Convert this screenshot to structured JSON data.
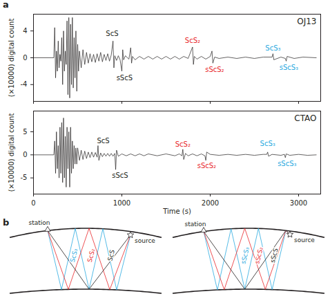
{
  "panel_labels": [
    "a",
    "b"
  ],
  "chart_data": [
    {
      "type": "line",
      "title": "OJ13",
      "y_label": "(×10000) digital count",
      "color": "#231f20",
      "xlim": [
        0,
        3250
      ],
      "xticks": [
        0,
        1000,
        2000,
        3000
      ],
      "ylim": [
        -6.5,
        6.5
      ],
      "yticks": [
        -4,
        0,
        4
      ],
      "tick_labels": "y",
      "x": [
        0,
        200,
        230,
        240,
        250,
        260,
        270,
        280,
        290,
        300,
        310,
        320,
        330,
        340,
        350,
        360,
        370,
        380,
        390,
        400,
        410,
        420,
        430,
        440,
        450,
        460,
        470,
        480,
        490,
        500,
        510,
        520,
        540,
        560,
        580,
        600,
        620,
        640,
        660,
        680,
        700,
        720,
        740,
        760,
        780,
        800,
        820,
        840,
        860,
        880,
        900,
        910,
        920,
        940,
        960,
        980,
        1000,
        1010,
        1020,
        1040,
        1080,
        1100,
        1110,
        1120,
        1150,
        1200,
        1250,
        1300,
        1350,
        1400,
        1450,
        1500,
        1550,
        1600,
        1650,
        1700,
        1750,
        1800,
        1810,
        1820,
        1850,
        1900,
        1950,
        2000,
        2020,
        2030,
        2050,
        2100,
        2200,
        2300,
        2400,
        2500,
        2600,
        2700,
        2710,
        2720,
        2800,
        2850,
        2860,
        2870,
        2950,
        3050,
        3200
      ],
      "values": [
        0,
        0,
        0,
        4.5,
        -3,
        1,
        -2,
        2.5,
        -1.5,
        0.5,
        -0.5,
        3,
        -4,
        4,
        -2,
        1,
        -1,
        5.5,
        -5.5,
        6,
        -6,
        5,
        -4,
        6,
        -4.5,
        3,
        -3,
        4,
        -5,
        2,
        -2,
        1,
        -1.5,
        1.2,
        -1,
        0.8,
        -0.8,
        0.6,
        -0.6,
        0.5,
        -0.7,
        0.6,
        -0.5,
        0.8,
        -0.6,
        0.5,
        -0.4,
        0.6,
        -0.5,
        0.4,
        2.5,
        -1.5,
        0.3,
        -0.4,
        0.3,
        -0.3,
        -2,
        1.2,
        -0.3,
        0.3,
        -0.2,
        1.5,
        -0.8,
        0.2,
        -0.3,
        0.2,
        -0.2,
        0.2,
        -0.2,
        0.2,
        -0.2,
        0.2,
        -0.2,
        0.2,
        -0.2,
        0.2,
        -0.1,
        1.6,
        -1,
        0.2,
        -0.2,
        0.2,
        -0.2,
        0.2,
        1,
        -0.8,
        0.1,
        -0.1,
        0.1,
        -0.1,
        0.1,
        -0.1,
        0.1,
        0.1,
        0.6,
        -0.3,
        0.1,
        -0.1,
        -0.5,
        0.2,
        -0.1,
        0.1,
        0
      ],
      "annotations": [
        {
          "text": "ScS",
          "x": 890,
          "y": 3.3,
          "color": "#231f20"
        },
        {
          "text": "sScS",
          "x": 1030,
          "y": -2.6,
          "color": "#231f20"
        },
        {
          "text": "ScS₂",
          "x": 1800,
          "y": 2.2,
          "color": "#e8262a"
        },
        {
          "text": "sScS₂",
          "x": 2050,
          "y": -1.4,
          "color": "#e8262a"
        },
        {
          "text": "ScS₃",
          "x": 2710,
          "y": 1.1,
          "color": "#29a9e0"
        },
        {
          "text": "sScS₃",
          "x": 2890,
          "y": -1.1,
          "color": "#29a9e0"
        }
      ]
    },
    {
      "type": "line",
      "title": "CTAO",
      "x_label": "Time (s)",
      "y_label": "(×10000) digital count",
      "color": "#231f20",
      "xlim": [
        0,
        3250
      ],
      "xticks": [
        0,
        1000,
        2000,
        3000
      ],
      "ylim": [
        -8.5,
        9.5
      ],
      "yticks": [
        -5,
        0,
        5
      ],
      "tick_labels": true,
      "x": [
        0,
        200,
        230,
        240,
        250,
        260,
        270,
        280,
        290,
        300,
        310,
        320,
        330,
        340,
        350,
        360,
        370,
        380,
        390,
        400,
        410,
        420,
        430,
        440,
        450,
        460,
        470,
        480,
        490,
        500,
        520,
        540,
        560,
        580,
        600,
        620,
        640,
        660,
        680,
        700,
        720,
        730,
        740,
        760,
        780,
        800,
        820,
        840,
        860,
        880,
        900,
        920,
        930,
        940,
        960,
        1000,
        1050,
        1100,
        1150,
        1200,
        1250,
        1300,
        1400,
        1500,
        1600,
        1650,
        1680,
        1690,
        1700,
        1720,
        1750,
        1800,
        1850,
        1900,
        1940,
        1950,
        1960,
        2000,
        2100,
        2200,
        2300,
        2400,
        2500,
        2600,
        2640,
        2650,
        2660,
        2700,
        2800,
        2840,
        2850,
        2860,
        2900,
        3000,
        3100,
        3200
      ],
      "values": [
        0,
        0,
        0,
        3,
        -4,
        5,
        -3,
        2,
        -5,
        6,
        -4,
        7,
        -6,
        8,
        -5,
        4,
        -7,
        6,
        -3,
        5,
        -7,
        6,
        -4,
        3,
        -3,
        2,
        -2,
        1.5,
        -2,
        1.5,
        -1.2,
        1,
        -1,
        0.8,
        -0.8,
        0.6,
        -0.6,
        0.6,
        -0.5,
        0.5,
        -0.5,
        2,
        -1.2,
        0.4,
        -0.4,
        0.3,
        -0.3,
        0.3,
        -0.3,
        0.3,
        -0.3,
        0.3,
        -3.2,
        1,
        -0.3,
        0.2,
        -0.2,
        0.2,
        -0.2,
        0.2,
        -0.2,
        0.2,
        -0.2,
        0.2,
        -0.2,
        0.2,
        -0.2,
        1.2,
        -1,
        0.3,
        -0.2,
        0.2,
        -0.2,
        0.2,
        -0.2,
        -1.2,
        0.6,
        0.1,
        -0.1,
        0.1,
        -0.1,
        0.1,
        -0.1,
        0.1,
        0.1,
        0.6,
        -0.3,
        0.1,
        -0.1,
        0.1,
        -0.6,
        0.2,
        -0.1,
        0.1,
        -0.1,
        0
      ],
      "annotations": [
        {
          "text": "ScS",
          "x": 790,
          "y": 2.6,
          "color": "#231f20"
        },
        {
          "text": "sScS",
          "x": 980,
          "y": -3.9,
          "color": "#231f20"
        },
        {
          "text": "ScS₂",
          "x": 1690,
          "y": 1.8,
          "color": "#e8262a"
        },
        {
          "text": "sScS₂",
          "x": 1960,
          "y": -1.8,
          "color": "#e8262a"
        },
        {
          "text": "ScS₃",
          "x": 2650,
          "y": 2.0,
          "color": "#29a9e0"
        },
        {
          "text": "sScS₃",
          "x": 2870,
          "y": -1.3,
          "color": "#29a9e0"
        }
      ]
    }
  ],
  "diagram": {
    "panels": [
      {
        "station": "station",
        "source": "source",
        "surface_reflection": false,
        "rays": [
          {
            "label": "ScS₃",
            "color": "#29a9e0",
            "reflections": 3
          },
          {
            "label": "ScS₂",
            "color": "#e8262a",
            "reflections": 2
          },
          {
            "label": "ScS",
            "color": "#231f20",
            "reflections": 1
          }
        ]
      },
      {
        "station": "station",
        "source": "source",
        "surface_reflection": true,
        "rays": [
          {
            "label": "sScS₃",
            "color": "#29a9e0",
            "reflections": 3
          },
          {
            "label": "sScS₂",
            "color": "#e8262a",
            "reflections": 2
          },
          {
            "label": "sScS",
            "color": "#231f20",
            "reflections": 1
          }
        ]
      }
    ]
  }
}
